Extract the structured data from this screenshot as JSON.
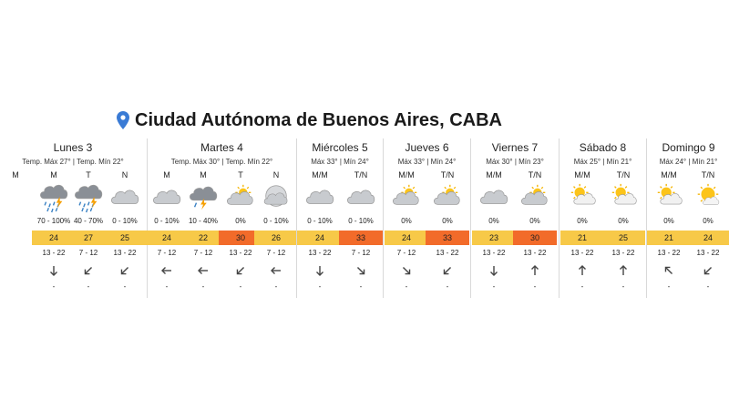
{
  "location": "Ciudad Autónoma de Buenos Aires, CABA",
  "days": [
    {
      "name": "Lunes 3",
      "temps": "Temp. Máx 27° | Temp. Mín 22°",
      "periods": [
        {
          "label": "M",
          "icon": "",
          "prob": "",
          "temp": "",
          "color": "",
          "wind": "",
          "arrow": "",
          "dash": ""
        },
        {
          "label": "M",
          "icon": "storm-rain-icon",
          "prob": "70 - 100%",
          "temp": "24",
          "color": "#f7c948",
          "wind": "13 - 22",
          "arrow": "s",
          "dash": "-"
        },
        {
          "label": "T",
          "icon": "storm-rain-icon",
          "prob": "40 - 70%",
          "temp": "27",
          "color": "#f7c948",
          "wind": "7 - 12",
          "arrow": "sw",
          "dash": "-"
        },
        {
          "label": "N",
          "icon": "cloud-icon",
          "prob": "0 - 10%",
          "temp": "25",
          "color": "#f7c948",
          "wind": "13 - 22",
          "arrow": "sw",
          "dash": "-"
        }
      ]
    },
    {
      "name": "Martes 4",
      "temps": "Temp. Máx 30° | Temp. Mín 22°",
      "periods": [
        {
          "label": "M",
          "icon": "cloud-icon",
          "prob": "0 - 10%",
          "temp": "24",
          "color": "#f7c948",
          "wind": "7 - 12",
          "arrow": "w",
          "dash": "-"
        },
        {
          "label": "M",
          "icon": "storm-icon",
          "prob": "10 - 40%",
          "temp": "22",
          "color": "#f7c948",
          "wind": "7 - 12",
          "arrow": "w",
          "dash": "-"
        },
        {
          "label": "T",
          "icon": "partly-cloudy-icon",
          "prob": "0%",
          "temp": "30",
          "color": "#f26b2a",
          "wind": "13 - 22",
          "arrow": "sw",
          "dash": "-"
        },
        {
          "label": "N",
          "icon": "moon-cloud-icon",
          "prob": "0 - 10%",
          "temp": "26",
          "color": "#f7c948",
          "wind": "7 - 12",
          "arrow": "w",
          "dash": "-"
        }
      ]
    },
    {
      "name": "Miércoles 5",
      "temps": "Máx 33° | Mín 24°",
      "periods": [
        {
          "label": "M/M",
          "icon": "cloud-icon",
          "prob": "0 - 10%",
          "temp": "24",
          "color": "#f7c948",
          "wind": "13 - 22",
          "arrow": "s",
          "dash": "-"
        },
        {
          "label": "T/N",
          "icon": "cloud-icon",
          "prob": "0 - 10%",
          "temp": "33",
          "color": "#f26b2a",
          "wind": "7 - 12",
          "arrow": "se",
          "dash": "-"
        }
      ]
    },
    {
      "name": "Jueves 6",
      "temps": "Máx 33° | Mín 24°",
      "periods": [
        {
          "label": "M/M",
          "icon": "partly-cloudy-icon",
          "prob": "0%",
          "temp": "24",
          "color": "#f7c948",
          "wind": "7 - 12",
          "arrow": "se",
          "dash": "-"
        },
        {
          "label": "T/N",
          "icon": "partly-cloudy-icon",
          "prob": "0%",
          "temp": "33",
          "color": "#f26b2a",
          "wind": "13 - 22",
          "arrow": "sw",
          "dash": "-"
        }
      ]
    },
    {
      "name": "Viernes 7",
      "temps": "Máx 30° | Mín 23°",
      "periods": [
        {
          "label": "M/M",
          "icon": "cloud-icon",
          "prob": "0%",
          "temp": "23",
          "color": "#f7c948",
          "wind": "13 - 22",
          "arrow": "s",
          "dash": "-"
        },
        {
          "label": "T/N",
          "icon": "partly-cloudy-icon",
          "prob": "0%",
          "temp": "30",
          "color": "#f26b2a",
          "wind": "13 - 22",
          "arrow": "n",
          "dash": "-"
        }
      ]
    },
    {
      "name": "Sábado 8",
      "temps": "Máx 25° | Mín 21°",
      "periods": [
        {
          "label": "M/M",
          "icon": "sun-cloud-icon",
          "prob": "0%",
          "temp": "21",
          "color": "#f7c948",
          "wind": "13 - 22",
          "arrow": "n",
          "dash": "-"
        },
        {
          "label": "T/N",
          "icon": "sun-cloud-icon",
          "prob": "0%",
          "temp": "25",
          "color": "#f7c948",
          "wind": "13 - 22",
          "arrow": "n",
          "dash": "-"
        }
      ]
    },
    {
      "name": "Domingo 9",
      "temps": "Máx 24° | Mín 21°",
      "periods": [
        {
          "label": "M/M",
          "icon": "sun-cloud-icon",
          "prob": "0%",
          "temp": "21",
          "color": "#f7c948",
          "wind": "13 - 22",
          "arrow": "nw",
          "dash": "-"
        },
        {
          "label": "T/N",
          "icon": "sun-icon",
          "prob": "0%",
          "temp": "24",
          "color": "#f7c948",
          "wind": "13 - 22",
          "arrow": "sw",
          "dash": "-"
        }
      ]
    }
  ]
}
